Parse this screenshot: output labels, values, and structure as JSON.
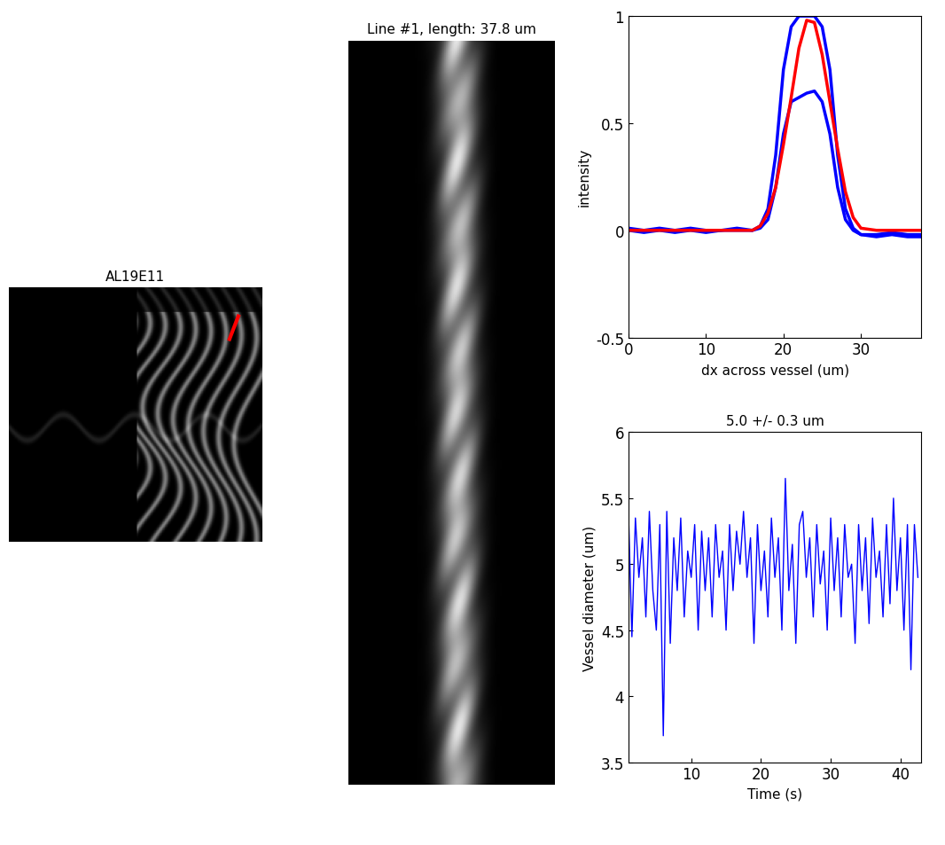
{
  "chart_data": [
    {
      "type": "image",
      "title": "AL19E11"
    },
    {
      "type": "image",
      "title": "Line #1, length: 37.8 um"
    },
    {
      "type": "line",
      "x_label": "dx across vessel (um)",
      "y_label": "intensity",
      "xlim": [
        0,
        37.8
      ],
      "xticks": [
        0,
        10,
        20,
        30
      ],
      "ylim": [
        -0.5,
        1
      ],
      "yticks": [
        -0.5,
        0,
        0.5,
        1
      ],
      "grid": false,
      "x": [
        0,
        2,
        4,
        6,
        8,
        10,
        12,
        14,
        16,
        17,
        18,
        19,
        20,
        21,
        22,
        23,
        24,
        25,
        26,
        27,
        28,
        29,
        30,
        32,
        34,
        36,
        37.8
      ],
      "series": [
        {
          "color": "#0000ff",
          "line_style": "solid",
          "values": [
            0.01,
            0.0,
            0.01,
            0.0,
            0.01,
            0.0,
            0.0,
            0.01,
            0.0,
            0.02,
            0.1,
            0.35,
            0.75,
            0.95,
            1.0,
            1.0,
            1.0,
            0.95,
            0.75,
            0.35,
            0.1,
            0.01,
            -0.02,
            -0.02,
            -0.01,
            -0.02,
            -0.02
          ]
        },
        {
          "color": "#0000ff",
          "line_style": "solid",
          "values": [
            0.0,
            -0.01,
            0.0,
            -0.01,
            0.0,
            -0.01,
            0.0,
            0.0,
            0.0,
            0.01,
            0.05,
            0.2,
            0.45,
            0.6,
            0.62,
            0.64,
            0.65,
            0.6,
            0.45,
            0.2,
            0.05,
            0.0,
            -0.02,
            -0.03,
            -0.02,
            -0.03,
            -0.03
          ]
        },
        {
          "color": "#ff0000",
          "line_style": "solid",
          "values": [
            0.0,
            0.0,
            0.0,
            0.0,
            0.0,
            0.0,
            0.0,
            0.0,
            0.0,
            0.02,
            0.08,
            0.2,
            0.4,
            0.62,
            0.85,
            0.98,
            0.97,
            0.82,
            0.6,
            0.38,
            0.18,
            0.06,
            0.01,
            0.0,
            0.0,
            0.0,
            0.0
          ]
        }
      ]
    },
    {
      "type": "line",
      "title": "5.0 +/- 0.3 um",
      "x_label": "Time (s)",
      "y_label": "Vessel diameter (um)",
      "xlim": [
        1,
        43
      ],
      "xticks": [
        10,
        20,
        30,
        40
      ],
      "ylim": [
        3.5,
        6
      ],
      "yticks": [
        3.5,
        4,
        4.5,
        5,
        5.5,
        6
      ],
      "grid": false,
      "x": [
        1.0,
        1.5,
        2.0,
        2.5,
        3.0,
        3.5,
        4.0,
        4.5,
        5.0,
        5.5,
        6.0,
        6.5,
        7.0,
        7.5,
        8.0,
        8.5,
        9.0,
        9.5,
        10.0,
        10.5,
        11.0,
        11.5,
        12.0,
        12.5,
        13.0,
        13.5,
        14.0,
        14.5,
        15.0,
        15.5,
        16.0,
        16.5,
        17.0,
        17.5,
        18.0,
        18.5,
        19.0,
        19.5,
        20.0,
        20.5,
        21.0,
        21.5,
        22.0,
        22.5,
        23.0,
        23.5,
        24.0,
        24.5,
        25.0,
        25.5,
        26.0,
        26.5,
        27.0,
        27.5,
        28.0,
        28.5,
        29.0,
        29.5,
        30.0,
        30.5,
        31.0,
        31.5,
        32.0,
        32.5,
        33.0,
        33.5,
        34.0,
        34.5,
        35.0,
        35.5,
        36.0,
        36.5,
        37.0,
        37.5,
        38.0,
        38.5,
        39.0,
        39.5,
        40.0,
        40.5,
        41.0,
        41.5,
        42.0,
        42.5
      ],
      "series": [
        {
          "color": "#0000ff",
          "line_style": "solid",
          "values": [
            5.4,
            4.45,
            5.35,
            4.9,
            5.2,
            4.6,
            5.4,
            4.8,
            4.5,
            5.3,
            3.7,
            5.4,
            4.4,
            5.2,
            4.8,
            5.35,
            4.6,
            5.1,
            4.9,
            5.3,
            4.5,
            5.25,
            4.8,
            5.2,
            4.6,
            5.3,
            4.9,
            5.1,
            4.5,
            5.3,
            4.8,
            5.25,
            5.0,
            5.4,
            4.9,
            5.2,
            4.4,
            5.3,
            4.8,
            5.1,
            4.6,
            5.35,
            4.9,
            5.2,
            4.5,
            5.65,
            4.8,
            5.15,
            4.4,
            5.3,
            5.4,
            4.9,
            5.2,
            4.6,
            5.3,
            4.85,
            5.1,
            4.5,
            5.35,
            4.8,
            5.2,
            4.6,
            5.3,
            4.9,
            5.0,
            4.4,
            5.3,
            4.8,
            5.2,
            4.55,
            5.35,
            4.9,
            5.1,
            4.6,
            5.3,
            4.7,
            5.5,
            4.8,
            5.2,
            4.5,
            5.3,
            4.2,
            5.3,
            4.9
          ]
        }
      ]
    }
  ]
}
